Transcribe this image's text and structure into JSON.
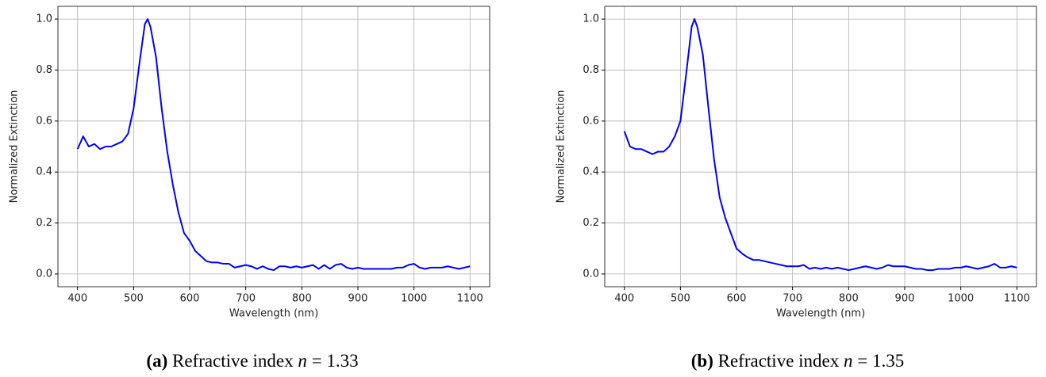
{
  "chart_data": [
    {
      "type": "line",
      "xlabel": "Wavelength (nm)",
      "ylabel": "Normalized Extinction",
      "caption_label": "(a)",
      "caption": "Refractive index",
      "caption_var": "n",
      "caption_value": "= 1.33",
      "x": [
        400,
        410,
        420,
        430,
        440,
        450,
        460,
        470,
        480,
        490,
        500,
        510,
        520,
        525,
        530,
        540,
        550,
        560,
        570,
        580,
        590,
        600,
        610,
        620,
        630,
        640,
        650,
        660,
        670,
        680,
        690,
        700,
        710,
        720,
        730,
        740,
        750,
        760,
        770,
        780,
        790,
        800,
        810,
        820,
        830,
        840,
        850,
        860,
        870,
        880,
        890,
        900,
        910,
        920,
        930,
        940,
        950,
        960,
        970,
        980,
        990,
        1000,
        1010,
        1020,
        1030,
        1040,
        1050,
        1060,
        1070,
        1080,
        1090,
        1100
      ],
      "series": [
        {
          "color": "#0000ff",
          "values": [
            0.49,
            0.54,
            0.5,
            0.51,
            0.49,
            0.5,
            0.5,
            0.51,
            0.52,
            0.55,
            0.65,
            0.82,
            0.98,
            1.0,
            0.97,
            0.85,
            0.65,
            0.48,
            0.35,
            0.24,
            0.16,
            0.13,
            0.09,
            0.07,
            0.05,
            0.045,
            0.045,
            0.04,
            0.04,
            0.025,
            0.03,
            0.035,
            0.03,
            0.02,
            0.03,
            0.02,
            0.015,
            0.03,
            0.03,
            0.025,
            0.03,
            0.025,
            0.03,
            0.035,
            0.02,
            0.035,
            0.02,
            0.035,
            0.04,
            0.025,
            0.02,
            0.025,
            0.02,
            0.02,
            0.02,
            0.02,
            0.02,
            0.02,
            0.025,
            0.025,
            0.035,
            0.04,
            0.025,
            0.02,
            0.025,
            0.025,
            0.025,
            0.03,
            0.025,
            0.02,
            0.025,
            0.03
          ]
        }
      ],
      "xlim": [
        365,
        1135
      ],
      "ylim": [
        -0.05,
        1.05
      ],
      "xticks": [
        400,
        500,
        600,
        700,
        800,
        900,
        1000,
        1100
      ],
      "yticks": [
        {
          "value": 0,
          "label": "0.0"
        },
        0.2,
        0.4,
        0.6,
        0.8,
        {
          "value": 1,
          "label": "1.0"
        }
      ],
      "grid": true
    },
    {
      "type": "line",
      "xlabel": "Wavelength (nm)",
      "ylabel": "Normalized Extinction",
      "caption_label": "(b)",
      "caption": "Refractive index",
      "caption_var": "n",
      "caption_value": "= 1.35",
      "x": [
        400,
        410,
        420,
        430,
        440,
        450,
        460,
        470,
        480,
        490,
        500,
        510,
        520,
        525,
        530,
        540,
        550,
        560,
        570,
        580,
        590,
        600,
        610,
        620,
        630,
        640,
        650,
        660,
        670,
        680,
        690,
        700,
        710,
        720,
        730,
        740,
        750,
        760,
        770,
        780,
        790,
        800,
        810,
        820,
        830,
        840,
        850,
        860,
        870,
        880,
        890,
        900,
        910,
        920,
        930,
        940,
        950,
        960,
        970,
        980,
        990,
        1000,
        1010,
        1020,
        1030,
        1040,
        1050,
        1060,
        1070,
        1080,
        1090,
        1100
      ],
      "series": [
        {
          "color": "#0000ff",
          "values": [
            0.56,
            0.5,
            0.49,
            0.49,
            0.48,
            0.47,
            0.48,
            0.48,
            0.5,
            0.54,
            0.6,
            0.78,
            0.97,
            1.0,
            0.97,
            0.86,
            0.65,
            0.45,
            0.3,
            0.22,
            0.16,
            0.1,
            0.08,
            0.065,
            0.055,
            0.055,
            0.05,
            0.045,
            0.04,
            0.035,
            0.03,
            0.03,
            0.03,
            0.035,
            0.02,
            0.025,
            0.02,
            0.025,
            0.02,
            0.025,
            0.02,
            0.015,
            0.02,
            0.025,
            0.03,
            0.025,
            0.02,
            0.025,
            0.035,
            0.03,
            0.03,
            0.03,
            0.025,
            0.02,
            0.02,
            0.015,
            0.015,
            0.02,
            0.02,
            0.02,
            0.025,
            0.025,
            0.03,
            0.025,
            0.02,
            0.025,
            0.03,
            0.04,
            0.025,
            0.025,
            0.03,
            0.025
          ]
        }
      ],
      "xlim": [
        365,
        1135
      ],
      "ylim": [
        -0.05,
        1.05
      ],
      "xticks": [
        400,
        500,
        600,
        700,
        800,
        900,
        1000,
        1100
      ],
      "yticks": [
        {
          "value": 0,
          "label": "0.0"
        },
        0.2,
        0.4,
        0.6,
        0.8,
        {
          "value": 1,
          "label": "1.0"
        }
      ],
      "grid": true
    }
  ]
}
